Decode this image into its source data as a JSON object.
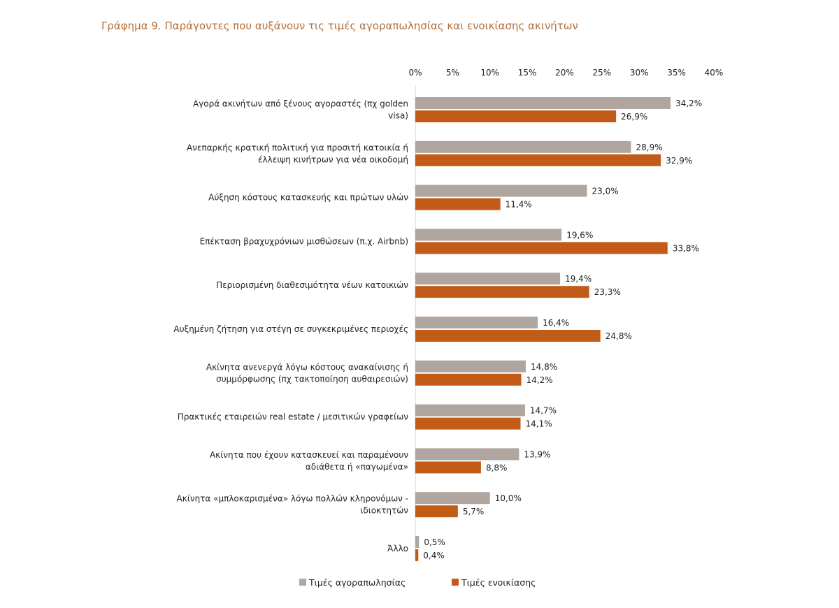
{
  "colors": {
    "sale": "#b0a69f",
    "rent": "#c25b18",
    "title": "#b5703a"
  },
  "chart_data": {
    "type": "bar",
    "orientation": "horizontal",
    "title": "Γράφημα 9. Παράγοντες που αυξάνουν τις τιμές αγοραπωλησίας και ενοικίασης ακινήτων",
    "xlim": [
      0,
      40
    ],
    "ticks": [
      "0%",
      "5%",
      "10%",
      "15%",
      "20%",
      "25%",
      "30%",
      "35%",
      "40%"
    ],
    "tick_values": [
      0,
      5,
      10,
      15,
      20,
      25,
      30,
      35,
      40
    ],
    "categories": [
      [
        "Αγορά ακινήτων από ξένους αγοραστές (πχ golden",
        "visa)"
      ],
      [
        "Ανεπαρκής κρατική πολιτική για προσιτή κατοικία ή",
        "έλλειψη κινήτρων για νέα οικοδομή"
      ],
      [
        "Αύξηση κόστους κατασκευής και πρώτων υλών"
      ],
      [
        "Επέκταση βραχυχρόνιων μισθώσεων (π.χ. Airbnb)"
      ],
      [
        "Περιορισμένη διαθεσιμότητα νέων κατοικιών"
      ],
      [
        "Αυξημένη ζήτηση για στέγη σε συγκεκριμένες περιοχές"
      ],
      [
        "Ακίνητα ανενεργά λόγω κόστους ανακαίνισης ή",
        "συμμόρφωσης (πχ τακτοποίηση αυθαιρεσιών)"
      ],
      [
        "Πρακτικές εταιρειών real estate / μεσιτικών γραφείων"
      ],
      [
        "Ακίνητα που έχουν κατασκευεί και παραμένουν",
        "αδιάθετα ή «παγωμένα»"
      ],
      [
        "Ακίνητα «μπλοκαρισμένα» λόγω πολλών κληρονόμων -",
        "ιδιοκτητών"
      ],
      [
        "Άλλο"
      ]
    ],
    "series": [
      {
        "name": "Τιμές αγοραπωλησίας",
        "values": [
          34.2,
          28.9,
          23.0,
          19.6,
          19.4,
          16.4,
          14.8,
          14.7,
          13.9,
          10.0,
          0.5
        ],
        "labels": [
          "34,2%",
          "28,9%",
          "23,0%",
          "19,6%",
          "19,4%",
          "16,4%",
          "14,8%",
          "14,7%",
          "13,9%",
          "10,0%",
          "0,5%"
        ]
      },
      {
        "name": "Τιμές ενοικίασης",
        "values": [
          26.9,
          32.9,
          11.4,
          33.8,
          23.3,
          24.8,
          14.2,
          14.1,
          8.8,
          5.7,
          0.4
        ],
        "labels": [
          "26,9%",
          "32,9%",
          "11,4%",
          "33,8%",
          "23,3%",
          "24,8%",
          "14,2%",
          "14,1%",
          "8,8%",
          "5,7%",
          "0,4%"
        ]
      }
    ],
    "legend_position": "bottom",
    "grid": false
  }
}
